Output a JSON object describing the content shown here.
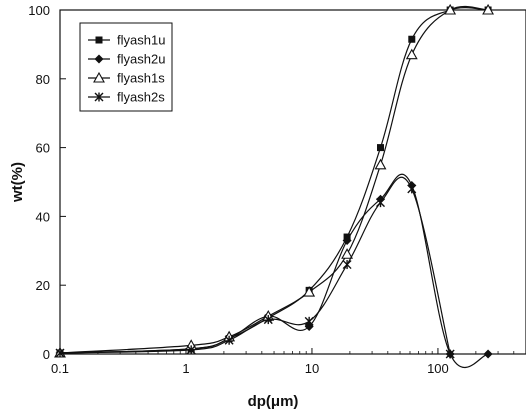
{
  "chart_data": {
    "type": "line",
    "title": "",
    "xlabel": "dp(μm)",
    "ylabel": "wt(%)",
    "xscale": "log",
    "xlim": [
      0.1,
      500
    ],
    "ylim": [
      0,
      100
    ],
    "xticks": [
      "0.1",
      "1",
      "10",
      "100"
    ],
    "yticks": [
      "0",
      "20",
      "40",
      "60",
      "80",
      "100"
    ],
    "grid": false,
    "legend_position": "top-left",
    "series": [
      {
        "name": "flyash1u",
        "marker": "square",
        "x": [
          0.1,
          1.1,
          2.2,
          4.5,
          9.5,
          19,
          35,
          62,
          125,
          250
        ],
        "y": [
          0.3,
          1.5,
          4.5,
          10.5,
          18.5,
          34,
          60,
          91.5,
          100,
          100
        ]
      },
      {
        "name": "flyash2u",
        "marker": "diamond",
        "x": [
          0.1,
          1.1,
          2.2,
          4.5,
          9.5,
          19,
          35,
          62,
          125,
          250
        ],
        "y": [
          0.3,
          1.5,
          4.5,
          11,
          8,
          33,
          45,
          49,
          0,
          0
        ]
      },
      {
        "name": "flyash1s",
        "marker": "triangle",
        "x": [
          0.1,
          1.1,
          2.2,
          4.5,
          9.5,
          19,
          35,
          62,
          125,
          250
        ],
        "y": [
          0.3,
          2.5,
          5,
          11,
          18,
          29,
          55,
          87,
          100,
          100
        ]
      },
      {
        "name": "flyash2s",
        "marker": "star",
        "x": [
          0.1,
          1.1,
          2.2,
          4.5,
          9.5,
          19,
          35,
          62,
          125
        ],
        "y": [
          0.3,
          1.2,
          4,
          10,
          9.5,
          26,
          44,
          48,
          0
        ]
      }
    ]
  }
}
